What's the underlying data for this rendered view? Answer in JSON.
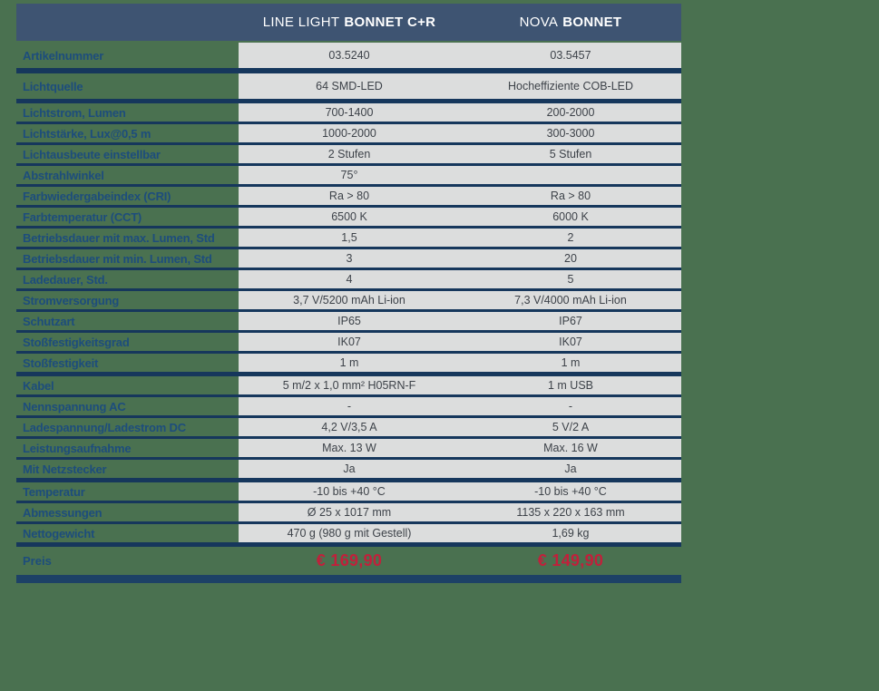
{
  "table": {
    "header": {
      "col1": {
        "brand": "LINE LIGHT",
        "model": "BONNET C+R"
      },
      "col2": {
        "brand": "NOVA",
        "model": "BONNET"
      }
    },
    "rows": [
      {
        "label": "Artikelnummer",
        "col1": "03.5240",
        "col2": "03.5457",
        "tall": true,
        "divider": "xheavy"
      },
      {
        "label": "Lichtquelle",
        "col1": "64 SMD-LED",
        "col2": "Hocheffiziente COB-LED",
        "tall": true,
        "divider": "heavy"
      },
      {
        "label": "Lichtstrom, Lumen",
        "col1": "700-1400",
        "col2": "200-2000"
      },
      {
        "label": "Lichtstärke, Lux@0,5 m",
        "col1": "1000-2000",
        "col2": "300-3000"
      },
      {
        "label": "Lichtausbeute einstellbar",
        "col1": "2 Stufen",
        "col2": "5 Stufen"
      },
      {
        "label": "Abstrahlwinkel",
        "col1": "75°",
        "col2": ""
      },
      {
        "label": "Farbwiedergabeindex (CRI)",
        "col1": "Ra > 80",
        "col2": "Ra > 80"
      },
      {
        "label": "Farbtemperatur (CCT)",
        "col1": "6500 K",
        "col2": "6000 K"
      },
      {
        "label": "Betriebsdauer mit max. Lumen, Std",
        "col1": "1,5",
        "col2": "2"
      },
      {
        "label": "Betriebsdauer mit min. Lumen, Std",
        "col1": "3",
        "col2": "20"
      },
      {
        "label": "Ladedauer, Std.",
        "col1": "4",
        "col2": "5"
      },
      {
        "label": "Stromversorgung",
        "col1": "3,7 V/5200 mAh Li-ion",
        "col2": "7,3 V/4000 mAh Li-ion"
      },
      {
        "label": "Schutzart",
        "col1": "IP65",
        "col2": "IP67"
      },
      {
        "label": "Stoßfestigkeitsgrad",
        "col1": "IK07",
        "col2": "IK07"
      },
      {
        "label": "Stoßfestigkeit",
        "col1": "1 m",
        "col2": "1 m",
        "divider": "heavy"
      },
      {
        "label": "Kabel",
        "col1": "5 m/2 x 1,0 mm² H05RN-F",
        "col2": "1 m USB"
      },
      {
        "label": "Nennspannung AC",
        "col1": "-",
        "col2": "-"
      },
      {
        "label": "Ladespannung/Ladestrom DC",
        "col1": "4,2 V/3,5 A",
        "col2": "5 V/2 A"
      },
      {
        "label": "Leistungsaufnahme",
        "col1": "Max. 13 W",
        "col2": "Max. 16 W"
      },
      {
        "label": "Mit Netzstecker",
        "col1": "Ja",
        "col2": "Ja",
        "divider": "heavy"
      },
      {
        "label": "Temperatur",
        "col1": "-10 bis +40 °C",
        "col2": "-10 bis +40 °C"
      },
      {
        "label": "Abmessungen",
        "col1": "Ø 25 x 1017 mm",
        "col2": "1135 x 220 x 163 mm"
      },
      {
        "label": "Nettogewicht",
        "col1": "470 g (980 g mit Gestell)",
        "col2": "1,69 kg",
        "divider": "heavy"
      }
    ],
    "price_row": {
      "label": "Preis",
      "col1": "€ 169,90",
      "col2": "€ 149,90"
    }
  },
  "colors": {
    "background": "#4a7150",
    "header_bg": "#3e5472",
    "header_text": "#ffffff",
    "divider": "#16375c",
    "label_text": "#1d4d7c",
    "cell_bg": "#dcdddd",
    "cell_text": "#3d4249",
    "price_red": "#c1203b",
    "bottom_bar": "#1d4166"
  }
}
